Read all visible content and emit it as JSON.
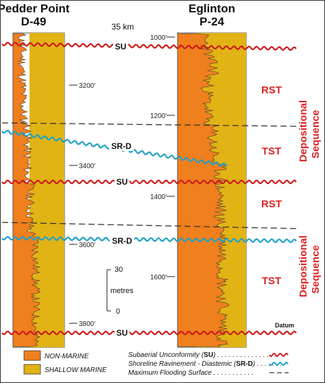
{
  "wells": {
    "left": {
      "name": "Pedder Point",
      "id": "D-49"
    },
    "right": {
      "name": "Eglinton",
      "id": "P-24"
    }
  },
  "distance": "35 km",
  "left_depths": [
    "3200'",
    "3400'",
    "3600'",
    "3800'"
  ],
  "right_depths": [
    "1000'",
    "1200'",
    "1400'",
    "1600'"
  ],
  "surfaces": {
    "su": "SU",
    "srd": "SR-D",
    "datum": "Datum"
  },
  "tracts": {
    "rst": "RST",
    "tst": "TST"
  },
  "sequence_label": {
    "line1": "Depositional",
    "line2": "Sequence"
  },
  "scale_bar": {
    "top": "30",
    "unit": "metres",
    "bottom": "0"
  },
  "legend": {
    "non_marine": "NON-MARINE",
    "shallow_marine": "SHALLOW MARINE",
    "su_pre": "Subaerial Unconformity (",
    "su_abbr": "SU",
    "su_post": ") . . . . . . . . . . . . . . . .",
    "srd_pre": "Shoreline Ravinement - Diastemic (",
    "srd_abbr": "SR-D",
    "srd_post": ") . . . . . . .",
    "mfs": "Maximum Flooding Surface . . . . . . . . . . ."
  },
  "colors": {
    "orange": "#f07f1d",
    "yellow": "#e1b315",
    "su_red": "#cc1b1b",
    "srd_blue": "#1fa2c7",
    "seq_red": "#d22222",
    "mfs_dash": "#333333"
  }
}
